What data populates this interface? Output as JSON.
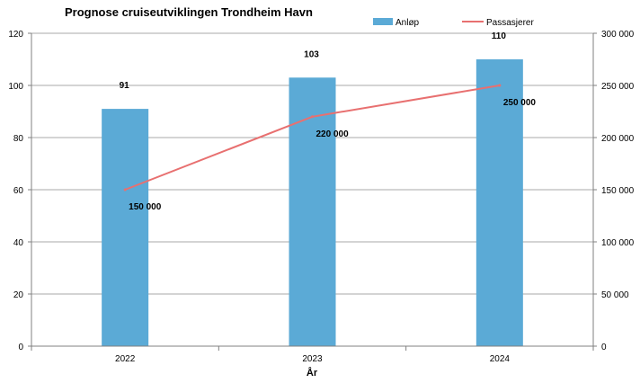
{
  "chart_data": {
    "type": "bar",
    "title": "Prognose cruiseutviklingen Trondheim Havn",
    "xlabel": "År",
    "categories": [
      "2022",
      "2023",
      "2024"
    ],
    "series": [
      {
        "name": "Anløp",
        "type": "bar",
        "axis": "left",
        "values": [
          91,
          103,
          110
        ],
        "value_labels": [
          "91",
          "103",
          "110"
        ],
        "color": "#5BAAD6"
      },
      {
        "name": "Passasjerer",
        "type": "line",
        "axis": "right",
        "values": [
          150000,
          220000,
          250000
        ],
        "value_labels": [
          "150 000",
          "220 000",
          "250 000"
        ],
        "color": "#E87070"
      }
    ],
    "y_left": {
      "ylim": [
        0,
        120
      ],
      "ticks": [
        0,
        20,
        40,
        60,
        80,
        100,
        120
      ],
      "tick_labels": [
        "0",
        "20",
        "40",
        "60",
        "80",
        "100",
        "120"
      ]
    },
    "y_right": {
      "ylim": [
        0,
        300000
      ],
      "ticks": [
        0,
        50000,
        100000,
        150000,
        200000,
        250000,
        300000
      ],
      "tick_labels": [
        "0",
        "50 000",
        "100 000",
        "150 000",
        "200 000",
        "250 000",
        "300 000"
      ]
    },
    "grid": true,
    "legend_position": "top-right",
    "colors": {
      "grid": "#a8a8a8",
      "axis": "#808080"
    }
  }
}
